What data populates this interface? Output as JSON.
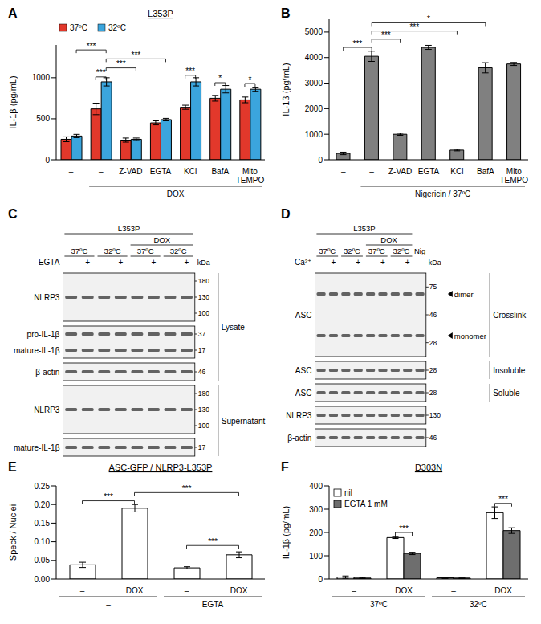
{
  "chart_data": [
    {
      "panel": "A",
      "type": "bar",
      "title": "L353P",
      "categories": [
        "–",
        "–",
        "Z-VAD",
        "EGTA",
        "KCl",
        "BafA",
        "Mito TEMPO"
      ],
      "series": [
        {
          "name": "37ºC",
          "color": "#e2382b",
          "values": [
            250,
            620,
            240,
            450,
            640,
            750,
            730
          ],
          "errors": [
            30,
            70,
            25,
            25,
            25,
            35,
            35
          ]
        },
        {
          "name": "32ºC",
          "color": "#3ba5dd",
          "values": [
            290,
            950,
            250,
            490,
            950,
            860,
            860
          ],
          "errors": [
            20,
            50,
            15,
            15,
            50,
            45,
            25
          ]
        }
      ],
      "ylabel": "IL-1β (pg/mL)",
      "ylim": [
        0,
        1400
      ],
      "yticks": [
        0,
        500,
        1000
      ],
      "legend": "top",
      "group_labels": [
        {
          "text": "DOX",
          "from": 1,
          "to": 6
        }
      ],
      "annotations": [
        {
          "text": "***",
          "from": [
            1,
            0
          ],
          "to": [
            1,
            1
          ],
          "y": 1010
        },
        {
          "text": "***",
          "from": [
            1,
            1
          ],
          "to": [
            2,
            1
          ],
          "y": 1120
        },
        {
          "text": "***",
          "from": [
            1,
            1
          ],
          "to": [
            3,
            1
          ],
          "y": 1230
        },
        {
          "text": "***",
          "from": [
            0,
            1
          ],
          "to": [
            1,
            1
          ],
          "y": 1340
        },
        {
          "text": "***",
          "from": [
            4,
            0
          ],
          "to": [
            4,
            1
          ],
          "y": 1030
        },
        {
          "text": "*",
          "from": [
            5,
            0
          ],
          "to": [
            5,
            1
          ],
          "y": 940
        },
        {
          "text": "*",
          "from": [
            6,
            0
          ],
          "to": [
            6,
            1
          ],
          "y": 930
        }
      ]
    },
    {
      "panel": "B",
      "type": "bar",
      "categories": [
        "–",
        "–",
        "Z-VAD",
        "EGTA",
        "KCl",
        "BafA",
        "Mito TEMPO"
      ],
      "color": "#808080",
      "values": [
        250,
        4050,
        1000,
        4400,
        380,
        3600,
        3750
      ],
      "errors": [
        50,
        200,
        40,
        80,
        30,
        200,
        60
      ],
      "ylabel": "IL-1β (pg/mL)",
      "ylim": [
        0,
        5500
      ],
      "yticks": [
        0,
        1000,
        2000,
        3000,
        4000,
        5000
      ],
      "group_labels": [
        {
          "text": "Nigericin / 37ºC",
          "from": 1,
          "to": 6
        }
      ],
      "annotations": [
        {
          "text": "***",
          "from": [
            0,
            0
          ],
          "to": [
            1,
            0
          ],
          "y": 4400
        },
        {
          "text": "***",
          "from": [
            1,
            0
          ],
          "to": [
            2,
            0
          ],
          "y": 4720
        },
        {
          "text": "***",
          "from": [
            1,
            0
          ],
          "to": [
            4,
            0
          ],
          "y": 5040
        },
        {
          "text": "*",
          "from": [
            1,
            0
          ],
          "to": [
            5,
            0
          ],
          "y": 5360
        }
      ]
    },
    {
      "panel": "E",
      "type": "bar",
      "title": "ASC-GFP / NLRP3-L353P",
      "categories": [
        "–",
        "DOX",
        "–",
        "DOX"
      ],
      "color": "#ffffff",
      "values": [
        0.038,
        0.19,
        0.03,
        0.065
      ],
      "errors": [
        0.007,
        0.01,
        0.003,
        0.008
      ],
      "ylabel": "Speck / Nuclei",
      "ylim": [
        0,
        0.25
      ],
      "yticks": [
        {
          "value": 0,
          "label": "0.00"
        },
        {
          "value": 0.05,
          "label": "0.05"
        },
        {
          "value": 0.1,
          "label": "0.10"
        },
        {
          "value": 0.15,
          "label": "0.15"
        },
        {
          "value": 0.2,
          "label": "0.20"
        },
        {
          "value": 0.25,
          "label": "0.25"
        }
      ],
      "group_labels": [
        {
          "text": "–",
          "from": 0,
          "to": 1
        },
        {
          "text": "EGTA",
          "from": 2,
          "to": 3
        }
      ],
      "annotations": [
        {
          "text": "***",
          "from": [
            0,
            0
          ],
          "to": [
            1,
            0
          ],
          "y": 0.21
        },
        {
          "text": "***",
          "from": [
            1,
            0
          ],
          "to": [
            3,
            0
          ],
          "y": 0.232
        },
        {
          "text": "***",
          "from": [
            2,
            0
          ],
          "to": [
            3,
            0
          ],
          "y": 0.09
        }
      ]
    },
    {
      "panel": "F",
      "type": "bar",
      "title": "D303N",
      "categories": [
        "–",
        "DOX",
        "–",
        "DOX"
      ],
      "series": [
        {
          "name": "nil",
          "color": "#ffffff",
          "values": [
            8,
            178,
            5,
            285
          ],
          "errors": [
            5,
            4,
            3,
            25
          ]
        },
        {
          "name": "EGTA 1 mM",
          "color": "#6e6e6e",
          "values": [
            4,
            110,
            4,
            208
          ],
          "errors": [
            2,
            5,
            2,
            12
          ]
        }
      ],
      "ylabel": "IL-1β (pg/mL)",
      "ylim": [
        0,
        400
      ],
      "yticks": [
        0,
        100,
        200,
        300,
        400
      ],
      "legend": "top-left",
      "group_labels": [
        {
          "text": "37ºC",
          "from": 0,
          "to": 1
        },
        {
          "text": "32ºC",
          "from": 2,
          "to": 3
        }
      ],
      "annotations": [
        {
          "text": "***",
          "from": [
            1,
            0
          ],
          "to": [
            1,
            1
          ],
          "y": 200
        },
        {
          "text": "***",
          "from": [
            3,
            0
          ],
          "to": [
            3,
            1
          ],
          "y": 325
        }
      ]
    }
  ],
  "blots": [
    {
      "panel": "C",
      "header_rows": [
        {
          "spans": [
            {
              "text": "L353P",
              "from": 0,
              "to": 7
            }
          ]
        },
        {
          "spans": [
            {
              "text": "DOX",
              "from": 4,
              "to": 7
            }
          ]
        },
        {
          "spans": [
            {
              "text": "37ºC",
              "from": 0,
              "to": 1
            },
            {
              "text": "32ºC",
              "from": 2,
              "to": 3
            },
            {
              "text": "37ºC",
              "from": 4,
              "to": 5
            },
            {
              "text": "32ºC",
              "from": 6,
              "to": 7
            }
          ]
        },
        {
          "label": "EGTA",
          "lanes": [
            "–",
            "+",
            "–",
            "+",
            "–",
            "+",
            "–",
            "+"
          ]
        }
      ],
      "unit": "kDa",
      "strips": [
        {
          "labels": [
            "NLRP3"
          ],
          "markers": [
            180,
            130,
            100
          ]
        },
        {
          "labels": [
            "pro-IL-1β",
            "mature-IL-1β"
          ],
          "markers": [
            37,
            17
          ]
        },
        {
          "labels": [
            "β-actin"
          ],
          "markers": [
            46
          ]
        },
        {
          "labels": [
            "NLRP3"
          ],
          "markers": [
            180,
            130,
            100
          ]
        },
        {
          "labels": [
            "mature-IL-1β"
          ],
          "markers": [
            17
          ]
        }
      ],
      "sections": [
        {
          "text": "Lysate",
          "from": 0,
          "to": 2
        },
        {
          "text": "Supernatant",
          "from": 3,
          "to": 4
        }
      ]
    },
    {
      "panel": "D",
      "header_rows": [
        {
          "spans": [
            {
              "text": "L353P",
              "from": 0,
              "to": 7
            }
          ]
        },
        {
          "spans": [
            {
              "text": "DOX",
              "from": 4,
              "to": 7
            }
          ]
        },
        {
          "spans": [
            {
              "text": "37ºC",
              "from": 0,
              "to": 1
            },
            {
              "text": "32ºC",
              "from": 2,
              "to": 3
            },
            {
              "text": "37ºC",
              "from": 4,
              "to": 5
            },
            {
              "text": "32ºC",
              "from": 6,
              "to": 7
            },
            {
              "text": "Nig",
              "from": 8,
              "to": 8
            }
          ]
        },
        {
          "label": "Ca²⁺",
          "lanes": [
            "–",
            "+",
            "–",
            "+",
            "–",
            "+",
            "–",
            "+",
            null
          ]
        }
      ],
      "unit": "kDa",
      "strips": [
        {
          "labels": [
            "ASC"
          ],
          "markers": [
            75,
            46,
            28
          ],
          "side_labels": [
            "dimer",
            "monomer"
          ]
        },
        {
          "labels": [
            "ASC"
          ],
          "markers": [
            28
          ]
        },
        {
          "labels": [
            "ASC"
          ],
          "markers": [
            28
          ]
        },
        {
          "labels": [
            "NLRP3"
          ],
          "markers": [
            130
          ]
        },
        {
          "labels": [
            "β-actin"
          ],
          "markers": [
            46
          ]
        }
      ],
      "sections": [
        {
          "text": "Crosslink",
          "from": 0,
          "to": 0
        },
        {
          "text": "Insoluble",
          "from": 1,
          "to": 1
        },
        {
          "text": "Soluble",
          "from": 2,
          "to": 2
        }
      ]
    }
  ]
}
